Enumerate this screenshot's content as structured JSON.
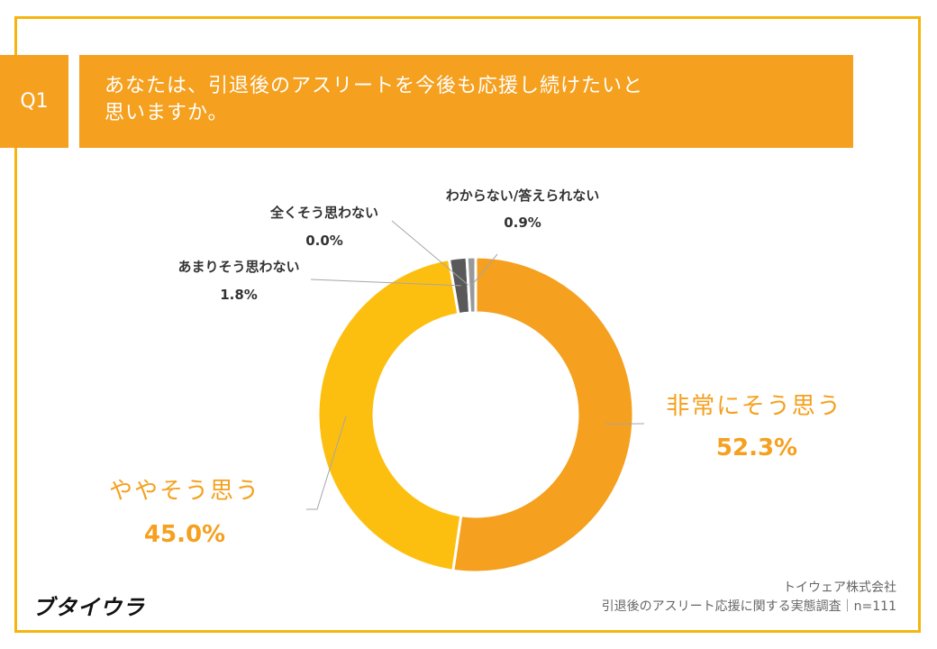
{
  "header": {
    "q_label": "Q1",
    "question_line1": "あなたは、引退後のアスリートを今後も応援し続けたいと",
    "question_line2": "思いますか。"
  },
  "chart_data": {
    "type": "pie",
    "subtype": "donut",
    "categories": [
      "非常にそう思う",
      "ややそう思う",
      "あまりそう思わない",
      "全くそう思わない",
      "わからない/答えられない"
    ],
    "values": [
      52.3,
      45.0,
      1.8,
      0.0,
      0.9
    ],
    "value_labels": [
      "52.3%",
      "45.0%",
      "1.8%",
      "0.0%",
      "0.9%"
    ],
    "colors": [
      "#f5a01e",
      "#fdbf0f",
      "#595959",
      "#3a3a3a",
      "#999999"
    ]
  },
  "footer": {
    "logo": "ブタイウラ",
    "source_line1": "トイウェア株式会社",
    "source_line2": "引退後のアスリート応援に関する実態調査｜n=111"
  }
}
